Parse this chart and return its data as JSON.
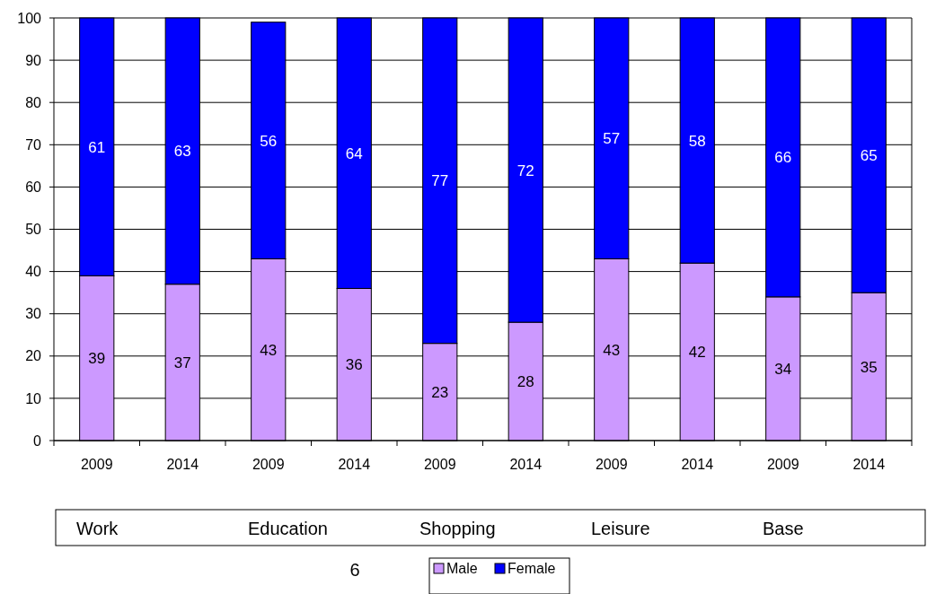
{
  "chart_data": {
    "type": "bar",
    "stacked": true,
    "categories": [
      "2009",
      "2014",
      "2009",
      "2014",
      "2009",
      "2014",
      "2009",
      "2014",
      "2009",
      "2014"
    ],
    "series": [
      {
        "name": "Male",
        "color": "#cc99ff",
        "values": [
          39,
          37,
          43,
          36,
          23,
          28,
          43,
          42,
          34,
          35
        ]
      },
      {
        "name": "Female",
        "color": "#0000ff",
        "values": [
          61,
          63,
          56,
          64,
          77,
          72,
          57,
          58,
          66,
          65
        ]
      }
    ],
    "ylim": [
      0,
      100
    ],
    "yticks": [
      0,
      10,
      20,
      30,
      40,
      50,
      60,
      70,
      80,
      90,
      100
    ],
    "grid": "y",
    "data_labels": true,
    "legend": "bottom",
    "annotations": [
      "Work",
      "Education",
      "Shopping",
      "Leisure",
      "Base",
      "6"
    ]
  }
}
